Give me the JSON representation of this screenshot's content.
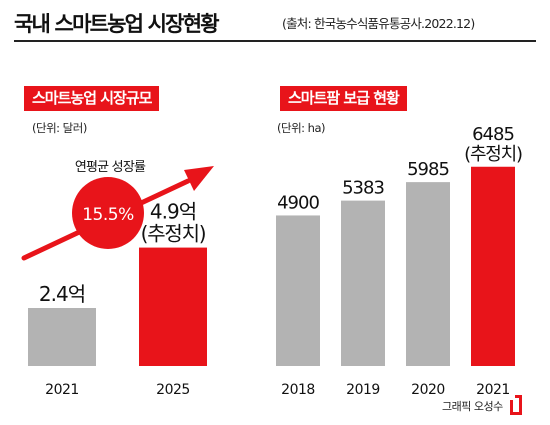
{
  "header": {
    "title": "국내 스마트농업 시장현황",
    "source": "(출처: 한국농수식품유통공사.2022.12)"
  },
  "left_panel": {
    "label": "스마트농업 시장규모",
    "unit": "(단위: 달러)",
    "growth_caption": "연평균 성장률",
    "growth_rate": "15.5%"
  },
  "right_panel": {
    "label": "스마트팜 보급 현황",
    "unit": "(단위: ha)"
  },
  "credit": "그래픽 오성수",
  "colors": {
    "accent": "#e8141a",
    "bar_gray": "#b3b3b3",
    "text": "#111111"
  },
  "chart_data": [
    {
      "type": "bar",
      "title": "스마트농업 시장규모",
      "unit": "(단위: 달러)",
      "categories": [
        "2021",
        "2025"
      ],
      "values": [
        2.4,
        4.9
      ],
      "value_labels": [
        "2.4억",
        "4.9억"
      ],
      "sub_labels": [
        "",
        "(추정치)"
      ],
      "highlight": [
        false,
        true
      ],
      "annotation": {
        "text": "연평균 성장률",
        "value": "15.5%"
      },
      "ylim": [
        0,
        6
      ]
    },
    {
      "type": "bar",
      "title": "스마트팜 보급 현황",
      "unit": "(단위: ha)",
      "categories": [
        "2018",
        "2019",
        "2020",
        "2021"
      ],
      "values": [
        4900,
        5383,
        5985,
        6485
      ],
      "value_labels": [
        "4900",
        "5383",
        "5985",
        "6485"
      ],
      "sub_labels": [
        "",
        "",
        "",
        "(추정치)"
      ],
      "highlight": [
        false,
        false,
        false,
        true
      ],
      "ylim": [
        0,
        6900
      ]
    }
  ]
}
